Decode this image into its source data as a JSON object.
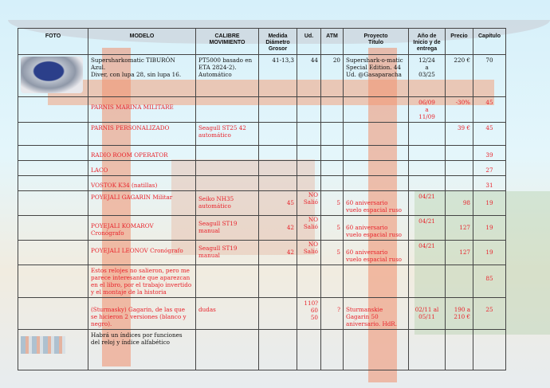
{
  "colors": {
    "text_red": "#e8222a",
    "text_black": "#111111",
    "grid": "#444444"
  },
  "headers": [
    "FOTO",
    "MODELO",
    "CALIBRE\nMOVIMIENTO",
    "Medida\nDiámetro\nGrosor",
    "Ud.",
    "ATM",
    "Proyecto\nTítulo",
    "Año de\nInicio y de\nentrega",
    "Precio",
    "Capítulo"
  ],
  "rows": [
    {
      "red": false,
      "photo": "watch-photo",
      "cells": [
        "",
        "Supersharkomatic TIBURÓN\nAzul.\nDiver, con lupa 28, sin lupa 16.",
        "PT5000 basado en\nETA 2824-2).\nAutomático",
        "41-13,3",
        "44",
        "20",
        "Supershark-o-matic\nSpecial Edition. 44\nUd. @Gasaparacha",
        "12/24\na\n03/25",
        "220 €",
        "70"
      ]
    },
    {
      "red": true,
      "cells": [
        "",
        "PARNIS MARINA MILITARE",
        "",
        "",
        "",
        "",
        "",
        "06/09\na\n11/09",
        "-30%",
        "45"
      ]
    },
    {
      "red": true,
      "cells": [
        "",
        "PARNIS PERSONALIZADO",
        "Seagull ST25 42\nautomático",
        "",
        "",
        "",
        "",
        "",
        "39 €",
        "45"
      ]
    },
    {
      "red": true,
      "cells": [
        "",
        "RADIO ROOM OPERATOR",
        "",
        "",
        "",
        "",
        "",
        "",
        "",
        "39"
      ]
    },
    {
      "red": true,
      "cells": [
        "",
        "LACO",
        "",
        "",
        "",
        "",
        "",
        "",
        "",
        "27"
      ]
    },
    {
      "red": true,
      "cells": [
        "",
        "VOSTOK K34 (natillas)",
        "",
        "",
        "",
        "",
        "",
        "",
        "",
        "31"
      ]
    },
    {
      "red": true,
      "cells": [
        "",
        "POYEJALI  GAGARIN Militar",
        "Seiko NH35\nautomático",
        "45",
        "NO\nSalió",
        "5",
        "60 aniversario\nvuelo espacial ruso",
        "04/21",
        "98",
        "19"
      ]
    },
    {
      "red": true,
      "cells": [
        "",
        "POYEJALI  KOMAROV\nCronógrafo",
        "Seagull ST19\nmanual",
        "42",
        "NO\nSalió",
        "5",
        "60 aniversario\nvuelo espacial ruso",
        "04/21",
        "127",
        "19"
      ]
    },
    {
      "red": true,
      "cells": [
        "",
        "POYEJALI  LEONOV Cronógrafo",
        "Seagull ST19\nmanual",
        "42",
        "NO\nSalió",
        "5",
        "60 aniversario\nvuelo espacial ruso",
        "04/21",
        "127",
        "19"
      ]
    },
    {
      "red": true,
      "cells": [
        "",
        "Estos relojes no salieron, pero me\nparece interesante que aparezcan\nen el libro, por el trabajo invertido\ny el montaje de la historia",
        "",
        "",
        "",
        "",
        "",
        "",
        "",
        "85"
      ]
    },
    {
      "red": true,
      "cells": [
        "",
        "(Sturmasky) Gagarin, de las que\nse hicieron 2 versiones (blanco y\nnegro).",
        "dudas",
        "",
        "110?\n60\n50",
        "?",
        "Sturmanskie\nGagarin 50\naniversario. HdR.",
        "02/11 al\n05/11",
        "190 a\n210 €",
        "25"
      ]
    },
    {
      "red": false,
      "photo": "table-thumbnail",
      "cells": [
        "",
        "Habrá un índices por funciones\ndel reloj y índice alfabético",
        "",
        "",
        "",
        "",
        "",
        "",
        "",
        ""
      ]
    }
  ]
}
